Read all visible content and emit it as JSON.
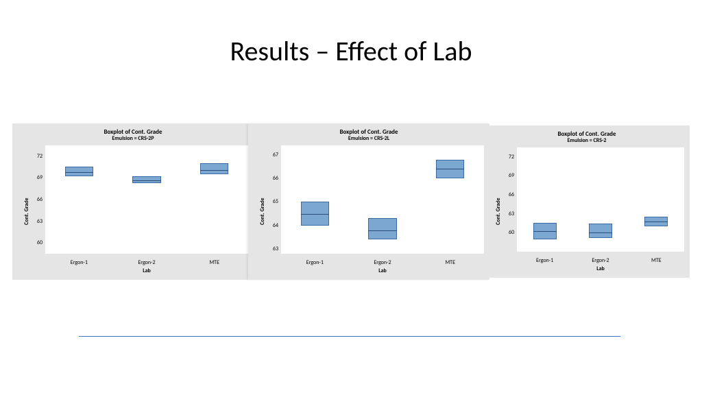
{
  "slide": {
    "title": "Results – Effect of Lab"
  },
  "common": {
    "panel_bg": "#e5e5e5",
    "plot_bg": "#ffffff",
    "box_fill": "#7ba7d1",
    "box_border": "#3a6aa6",
    "median_color": "#2a4d78",
    "accent_line_color": "#4472c4",
    "title_fontsize": 9,
    "subtitle_fontsize": 8,
    "tick_fontsize": 8,
    "ylabel": "Cont. Grade",
    "xlabel": "Lab",
    "categories": [
      "Ergon-1",
      "Ergon-2",
      "MTE"
    ]
  },
  "panels": [
    {
      "title": "Boxplot of Cont. Grade",
      "subtitle": "Emulsion = CRS-2P",
      "type": "boxplot",
      "ylim": [
        58.5,
        73.5
      ],
      "yticks": [
        60,
        63,
        66,
        69,
        72
      ],
      "boxes": [
        {
          "cat": "Ergon-1",
          "q1": 69.2,
          "median": 69.8,
          "q3": 70.6
        },
        {
          "cat": "Ergon-2",
          "q1": 68.3,
          "median": 68.7,
          "q3": 69.2
        },
        {
          "cat": "MTE",
          "q1": 69.5,
          "median": 70.1,
          "q3": 71.0
        }
      ]
    },
    {
      "title": "Boxplot of Cont. Grade",
      "subtitle": "Emulsion = CRS-2L",
      "type": "boxplot",
      "ylim": [
        62.8,
        67.4
      ],
      "yticks": [
        63,
        64,
        65,
        66,
        67
      ],
      "boxes": [
        {
          "cat": "Ergon-1",
          "q1": 64.0,
          "median": 64.5,
          "q3": 65.0
        },
        {
          "cat": "Ergon-2",
          "q1": 63.4,
          "median": 63.8,
          "q3": 64.3
        },
        {
          "cat": "MTE",
          "q1": 66.0,
          "median": 66.4,
          "q3": 66.8
        }
      ]
    },
    {
      "title": "Boxplot of Cont. Grade",
      "subtitle": "Emulsion = CRS-2",
      "type": "boxplot",
      "ylim": [
        57.0,
        73.5
      ],
      "yticks": [
        60,
        63,
        66,
        69,
        72
      ],
      "boxes": [
        {
          "cat": "Ergon-1",
          "q1": 59.0,
          "median": 60.3,
          "q3": 61.6
        },
        {
          "cat": "Ergon-2",
          "q1": 59.2,
          "median": 60.0,
          "q3": 61.4
        },
        {
          "cat": "MTE",
          "q1": 61.0,
          "median": 61.8,
          "q3": 62.5
        }
      ]
    }
  ]
}
